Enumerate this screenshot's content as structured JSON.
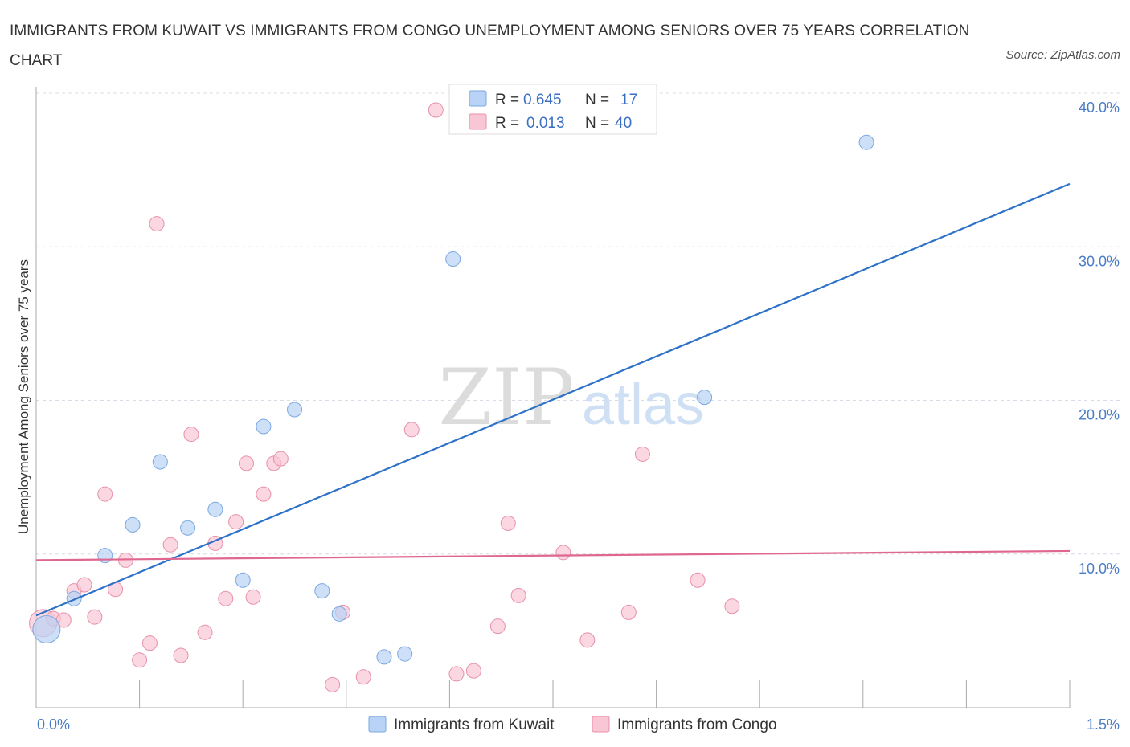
{
  "title": "IMMIGRANTS FROM KUWAIT VS IMMIGRANTS FROM CONGO UNEMPLOYMENT AMONG SENIORS OVER 75 YEARS CORRELATION CHART",
  "source": "Source: ZipAtlas.com",
  "watermark": {
    "zip": "ZIP",
    "atlas": "atlas"
  },
  "colors": {
    "kuwait_fill": "#b8d3f5",
    "kuwait_stroke": "#7aa8e0",
    "kuwait_line": "#2d72c8",
    "congo_fill": "#f8c6d4",
    "congo_stroke": "#e890aa",
    "congo_line": "#e06890",
    "grid": "#d8dce6",
    "axis": "#aaaaaa"
  },
  "legend": {
    "rows": [
      {
        "r_label": "R =",
        "r_value": "0.645",
        "n_label": "N =",
        "n_value": "17"
      },
      {
        "r_label": "R =",
        "r_value": "0.013",
        "n_label": "N =",
        "n_value": "40"
      }
    ]
  },
  "chart_data": {
    "type": "scatter",
    "xlabel": "",
    "ylabel": "Unemployment Among Seniors over 75 years",
    "xlim": [
      0,
      1.5
    ],
    "ylim": [
      0,
      40
    ],
    "x_tick_labels": [
      "0.0%",
      "1.5%"
    ],
    "y_ticks": [
      {
        "value": 10,
        "label": "10.0%"
      },
      {
        "value": 20,
        "label": "20.0%"
      },
      {
        "value": 30,
        "label": "30.0%"
      },
      {
        "value": 40,
        "label": "40.0%"
      }
    ],
    "grid": true,
    "legend_position": "top-center",
    "series": [
      {
        "name": "Immigrants from Kuwait",
        "trend": {
          "x": [
            0.0,
            1.5
          ],
          "y": [
            6.0,
            34.1
          ]
        },
        "points": [
          {
            "x": 0.015,
            "y": 5.1,
            "big": true
          },
          {
            "x": 0.055,
            "y": 7.1
          },
          {
            "x": 0.1,
            "y": 9.9
          },
          {
            "x": 0.14,
            "y": 11.9
          },
          {
            "x": 0.18,
            "y": 16.0
          },
          {
            "x": 0.22,
            "y": 11.7
          },
          {
            "x": 0.26,
            "y": 12.9
          },
          {
            "x": 0.3,
            "y": 8.3
          },
          {
            "x": 0.33,
            "y": 18.3
          },
          {
            "x": 0.375,
            "y": 19.4
          },
          {
            "x": 0.415,
            "y": 7.6
          },
          {
            "x": 0.44,
            "y": 6.1
          },
          {
            "x": 0.505,
            "y": 3.3
          },
          {
            "x": 0.535,
            "y": 3.5
          },
          {
            "x": 0.605,
            "y": 29.2
          },
          {
            "x": 0.97,
            "y": 20.2
          },
          {
            "x": 1.205,
            "y": 36.8
          }
        ]
      },
      {
        "name": "Immigrants from Congo",
        "trend": {
          "x": [
            0.0,
            1.5
          ],
          "y": [
            9.6,
            10.2
          ]
        },
        "points": [
          {
            "x": 0.01,
            "y": 5.5,
            "big": true
          },
          {
            "x": 0.025,
            "y": 5.8
          },
          {
            "x": 0.04,
            "y": 5.7
          },
          {
            "x": 0.055,
            "y": 7.6
          },
          {
            "x": 0.07,
            "y": 8.0
          },
          {
            "x": 0.085,
            "y": 5.9
          },
          {
            "x": 0.1,
            "y": 13.9
          },
          {
            "x": 0.115,
            "y": 7.7
          },
          {
            "x": 0.13,
            "y": 9.6
          },
          {
            "x": 0.15,
            "y": 3.1
          },
          {
            "x": 0.165,
            "y": 4.2
          },
          {
            "x": 0.175,
            "y": 31.5
          },
          {
            "x": 0.195,
            "y": 10.6
          },
          {
            "x": 0.21,
            "y": 3.4
          },
          {
            "x": 0.225,
            "y": 17.8
          },
          {
            "x": 0.245,
            "y": 4.9
          },
          {
            "x": 0.26,
            "y": 10.7
          },
          {
            "x": 0.275,
            "y": 7.1
          },
          {
            "x": 0.29,
            "y": 12.1
          },
          {
            "x": 0.305,
            "y": 15.9
          },
          {
            "x": 0.315,
            "y": 7.2
          },
          {
            "x": 0.33,
            "y": 13.9
          },
          {
            "x": 0.345,
            "y": 15.9
          },
          {
            "x": 0.355,
            "y": 16.2
          },
          {
            "x": 0.43,
            "y": 1.5
          },
          {
            "x": 0.445,
            "y": 6.2
          },
          {
            "x": 0.475,
            "y": 2.0
          },
          {
            "x": 0.545,
            "y": 18.1
          },
          {
            "x": 0.58,
            "y": 38.9
          },
          {
            "x": 0.61,
            "y": 2.2
          },
          {
            "x": 0.635,
            "y": 2.4
          },
          {
            "x": 0.67,
            "y": 5.3
          },
          {
            "x": 0.685,
            "y": 12.0
          },
          {
            "x": 0.7,
            "y": 7.3
          },
          {
            "x": 0.765,
            "y": 10.1
          },
          {
            "x": 0.8,
            "y": 4.4
          },
          {
            "x": 0.86,
            "y": 6.2
          },
          {
            "x": 0.88,
            "y": 16.5
          },
          {
            "x": 0.96,
            "y": 8.3
          },
          {
            "x": 1.01,
            "y": 6.6
          }
        ]
      }
    ]
  }
}
